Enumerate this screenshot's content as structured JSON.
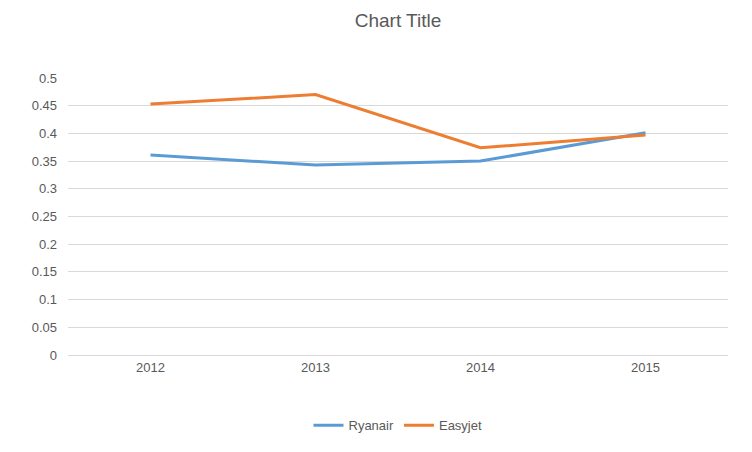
{
  "chart_data": {
    "type": "line",
    "title": "Chart Title",
    "categories": [
      "2012",
      "2013",
      "2014",
      "2015"
    ],
    "series": [
      {
        "name": "Ryanair",
        "color": "#5b9bd5",
        "values": [
          0.361,
          0.343,
          0.35,
          0.401
        ]
      },
      {
        "name": "Easyjet",
        "color": "#ed7d31",
        "values": [
          0.453,
          0.47,
          0.374,
          0.397
        ]
      }
    ],
    "ylim": [
      0,
      0.5
    ],
    "yticks": [
      0,
      0.05,
      0.1,
      0.15,
      0.2,
      0.25,
      0.3,
      0.35,
      0.4,
      0.45,
      0.5
    ],
    "grid": true,
    "legend": "bottom"
  }
}
